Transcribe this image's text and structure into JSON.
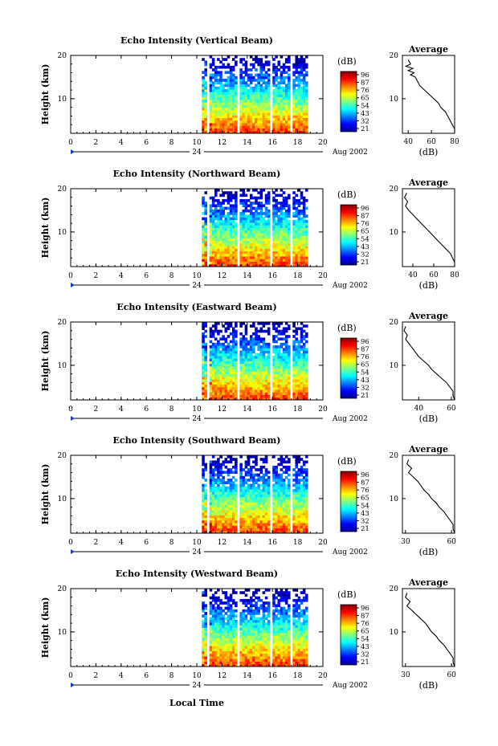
{
  "figure": {
    "day_label": "24",
    "date_label": "Aug 2002",
    "xlabel": "Local Time"
  },
  "chart_data": [
    {
      "type": "heatmap",
      "title": "Echo Intensity (Vertical Beam)",
      "ylabel": "Height (km)",
      "xlim": [
        0,
        20
      ],
      "ylim": [
        2,
        20
      ],
      "x_ticks": [
        "0",
        "2",
        "4",
        "6",
        "8",
        "10",
        "12",
        "14",
        "16",
        "18",
        "20"
      ],
      "y_ticks": [
        "20",
        "10"
      ],
      "colorbar_label": "(dB)",
      "colorbar_ticks": [
        "96",
        "87",
        "76",
        "65",
        "54",
        "43",
        "32",
        "21"
      ],
      "data_interval": [
        10.4,
        18.6
      ],
      "gaps": [
        [
          10.7,
          11.0
        ],
        [
          13.2,
          13.4
        ],
        [
          15.8,
          16.0
        ],
        [
          17.4,
          17.6
        ]
      ],
      "profile": {
        "title": "Average",
        "xlabel": "(dB)",
        "xticks": [
          "40",
          "60",
          "80"
        ],
        "xlim": [
          35,
          80
        ],
        "points": [
          [
            40,
            19
          ],
          [
            42,
            18
          ],
          [
            38,
            17.5
          ],
          [
            44,
            17
          ],
          [
            40,
            16.5
          ],
          [
            45,
            16
          ],
          [
            42,
            15.5
          ],
          [
            46,
            15
          ],
          [
            48,
            14
          ],
          [
            50,
            13
          ],
          [
            54,
            12
          ],
          [
            58,
            11
          ],
          [
            62,
            10
          ],
          [
            66,
            9
          ],
          [
            68,
            8
          ],
          [
            72,
            7
          ],
          [
            74,
            6
          ],
          [
            76,
            5
          ],
          [
            78,
            4
          ],
          [
            80,
            3
          ],
          [
            80,
            2
          ]
        ]
      }
    },
    {
      "type": "heatmap",
      "title": "Echo Intensity (Northward Beam)",
      "ylabel": "Height (km)",
      "xlim": [
        0,
        20
      ],
      "ylim": [
        2,
        20
      ],
      "x_ticks": [
        "0",
        "2",
        "4",
        "6",
        "8",
        "10",
        "12",
        "14",
        "16",
        "18",
        "20"
      ],
      "y_ticks": [
        "20",
        "10"
      ],
      "colorbar_label": "(dB)",
      "colorbar_ticks": [
        "96",
        "87",
        "76",
        "65",
        "54",
        "43",
        "32",
        "21"
      ],
      "data_interval": [
        10.4,
        18.6
      ],
      "gaps": [
        [
          10.7,
          11.0
        ],
        [
          13.2,
          13.4
        ],
        [
          15.8,
          16.0
        ],
        [
          17.4,
          17.6
        ]
      ],
      "profile": {
        "title": "Average",
        "xlabel": "(dB)",
        "xticks": [
          "40",
          "60",
          "80"
        ],
        "xlim": [
          30,
          80
        ],
        "points": [
          [
            34,
            19
          ],
          [
            32,
            18
          ],
          [
            35,
            17
          ],
          [
            33,
            16
          ],
          [
            36,
            15
          ],
          [
            40,
            14
          ],
          [
            44,
            13
          ],
          [
            48,
            12
          ],
          [
            52,
            11
          ],
          [
            56,
            10
          ],
          [
            60,
            9
          ],
          [
            64,
            8
          ],
          [
            68,
            7
          ],
          [
            72,
            6
          ],
          [
            76,
            5
          ],
          [
            78,
            4
          ],
          [
            80,
            3
          ],
          [
            80,
            2
          ]
        ]
      }
    },
    {
      "type": "heatmap",
      "title": "Echo Intensity (Eastward Beam)",
      "ylabel": "Height (km)",
      "xlim": [
        0,
        20
      ],
      "ylim": [
        2,
        20
      ],
      "x_ticks": [
        "0",
        "2",
        "4",
        "6",
        "8",
        "10",
        "12",
        "14",
        "16",
        "18",
        "20"
      ],
      "y_ticks": [
        "20",
        "10"
      ],
      "colorbar_label": "(dB)",
      "colorbar_ticks": [
        "96",
        "87",
        "76",
        "65",
        "54",
        "43",
        "32",
        "21"
      ],
      "data_interval": [
        10.4,
        18.6
      ],
      "gaps": [
        [
          10.7,
          11.0
        ],
        [
          13.2,
          13.4
        ],
        [
          15.8,
          16.0
        ],
        [
          17.4,
          17.6
        ]
      ],
      "profile": {
        "title": "Average",
        "xlabel": "(dB)",
        "xticks": [
          "40",
          "60"
        ],
        "xlim": [
          30,
          62
        ],
        "points": [
          [
            32,
            19
          ],
          [
            31,
            18
          ],
          [
            33,
            17
          ],
          [
            32,
            16
          ],
          [
            34,
            15
          ],
          [
            36,
            14
          ],
          [
            38,
            13
          ],
          [
            40,
            12
          ],
          [
            43,
            11
          ],
          [
            46,
            10
          ],
          [
            48,
            9
          ],
          [
            51,
            8
          ],
          [
            54,
            7
          ],
          [
            57,
            6
          ],
          [
            59,
            5
          ],
          [
            61,
            4
          ],
          [
            61,
            3
          ],
          [
            62,
            2
          ]
        ]
      }
    },
    {
      "type": "heatmap",
      "title": "Echo Intensity (Southward Beam)",
      "ylabel": "Height (km)",
      "xlim": [
        0,
        20
      ],
      "ylim": [
        2,
        20
      ],
      "x_ticks": [
        "0",
        "2",
        "4",
        "6",
        "8",
        "10",
        "12",
        "14",
        "16",
        "18",
        "20"
      ],
      "y_ticks": [
        "20",
        "10"
      ],
      "colorbar_label": "(dB)",
      "colorbar_ticks": [
        "96",
        "87",
        "76",
        "65",
        "54",
        "43",
        "32",
        "21"
      ],
      "data_interval": [
        10.4,
        18.6
      ],
      "gaps": [
        [
          10.7,
          11.0
        ],
        [
          13.2,
          13.4
        ],
        [
          15.8,
          16.0
        ],
        [
          17.4,
          17.6
        ]
      ],
      "profile": {
        "title": "Average",
        "xlabel": "(dB)",
        "xticks": [
          "30",
          "60"
        ],
        "xlim": [
          28,
          62
        ],
        "points": [
          [
            32,
            19
          ],
          [
            31,
            18
          ],
          [
            34,
            17
          ],
          [
            32,
            16
          ],
          [
            35,
            15
          ],
          [
            38,
            14
          ],
          [
            40,
            13
          ],
          [
            42,
            12
          ],
          [
            45,
            11
          ],
          [
            47,
            10
          ],
          [
            50,
            9
          ],
          [
            52,
            8
          ],
          [
            55,
            7
          ],
          [
            57,
            6
          ],
          [
            59,
            5
          ],
          [
            61,
            4
          ],
          [
            61,
            3
          ],
          [
            62,
            2
          ]
        ]
      }
    },
    {
      "type": "heatmap",
      "title": "Echo Intensity (Westward Beam)",
      "ylabel": "Height (km)",
      "xlim": [
        0,
        20
      ],
      "ylim": [
        2,
        20
      ],
      "x_ticks": [
        "0",
        "2",
        "4",
        "6",
        "8",
        "10",
        "12",
        "14",
        "16",
        "18",
        "20"
      ],
      "y_ticks": [
        "20",
        "10"
      ],
      "colorbar_label": "(dB)",
      "colorbar_ticks": [
        "96",
        "87",
        "76",
        "65",
        "54",
        "43",
        "32",
        "21"
      ],
      "data_interval": [
        10.4,
        18.6
      ],
      "gaps": [
        [
          10.7,
          11.0
        ],
        [
          13.2,
          13.4
        ],
        [
          15.8,
          16.0
        ],
        [
          17.4,
          17.6
        ]
      ],
      "profile": {
        "title": "Average",
        "xlabel": "(dB)",
        "xticks": [
          "30",
          "60"
        ],
        "xlim": [
          28,
          62
        ],
        "points": [
          [
            31,
            19
          ],
          [
            30,
            18
          ],
          [
            33,
            17
          ],
          [
            31,
            16
          ],
          [
            34,
            15
          ],
          [
            37,
            14
          ],
          [
            40,
            13
          ],
          [
            43,
            12
          ],
          [
            45,
            11
          ],
          [
            47,
            10
          ],
          [
            50,
            9
          ],
          [
            52,
            8
          ],
          [
            55,
            7
          ],
          [
            57,
            6
          ],
          [
            59,
            5
          ],
          [
            61,
            4
          ],
          [
            61,
            3
          ],
          [
            62,
            2
          ]
        ]
      }
    }
  ],
  "colors": {
    "jet": [
      "#00008f",
      "#0000ff",
      "#0080ff",
      "#00ffff",
      "#80ff80",
      "#ffff00",
      "#ff8000",
      "#ff0000",
      "#800000"
    ]
  }
}
